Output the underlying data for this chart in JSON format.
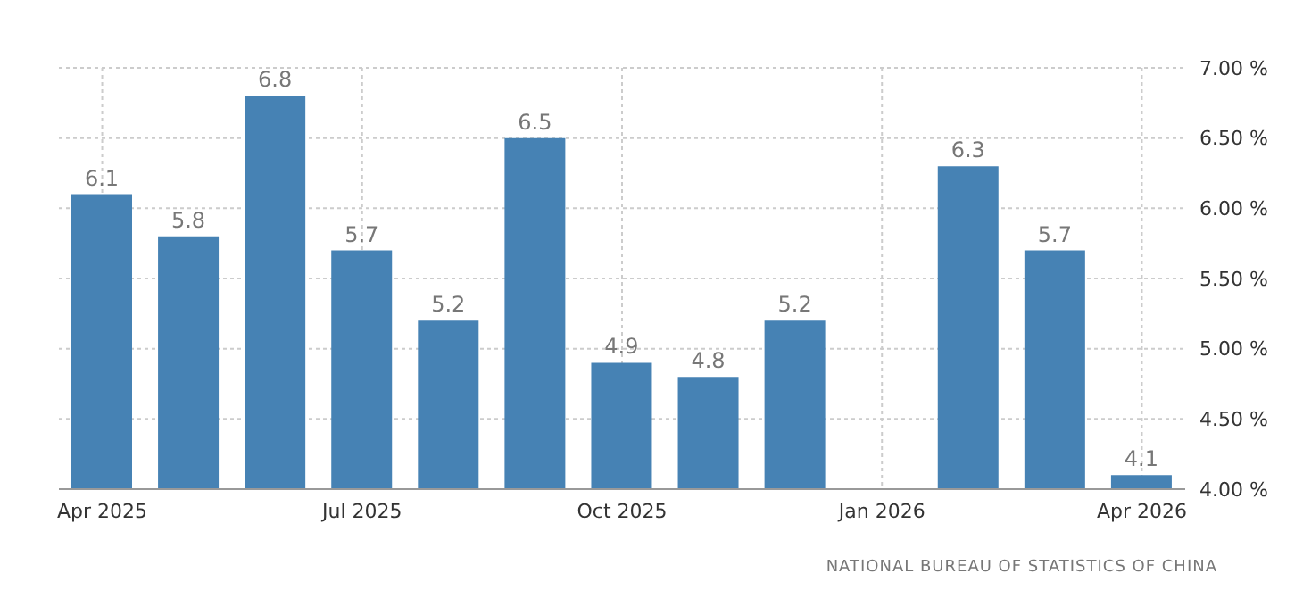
{
  "chart_data": {
    "type": "bar",
    "categories": [
      "Apr 2025",
      null,
      null,
      "Jul 2025",
      null,
      null,
      "Oct 2025",
      null,
      null,
      "Jan 2026",
      null,
      null,
      "Apr 2026"
    ],
    "values": [
      6.1,
      5.8,
      6.8,
      5.7,
      5.2,
      6.5,
      4.9,
      4.8,
      5.2,
      null,
      6.3,
      5.7,
      4.1
    ],
    "color": "#4682b4",
    "ylim": [
      4,
      7
    ],
    "yticks": [
      {
        "value": 4,
        "label": "4.00 %"
      },
      {
        "value": 4.5,
        "label": "4.50 %"
      },
      {
        "value": 5,
        "label": "5.00 %"
      },
      {
        "value": 5.5,
        "label": "5.50 %"
      },
      {
        "value": 6,
        "label": "6.00 %"
      },
      {
        "value": 6.5,
        "label": "6.50 %"
      },
      {
        "value": 7,
        "label": "7.00 %"
      }
    ],
    "grid": true,
    "data_labels": true,
    "annotations": [
      "NATIONAL BUREAU OF STATISTICS OF CHINA"
    ]
  }
}
